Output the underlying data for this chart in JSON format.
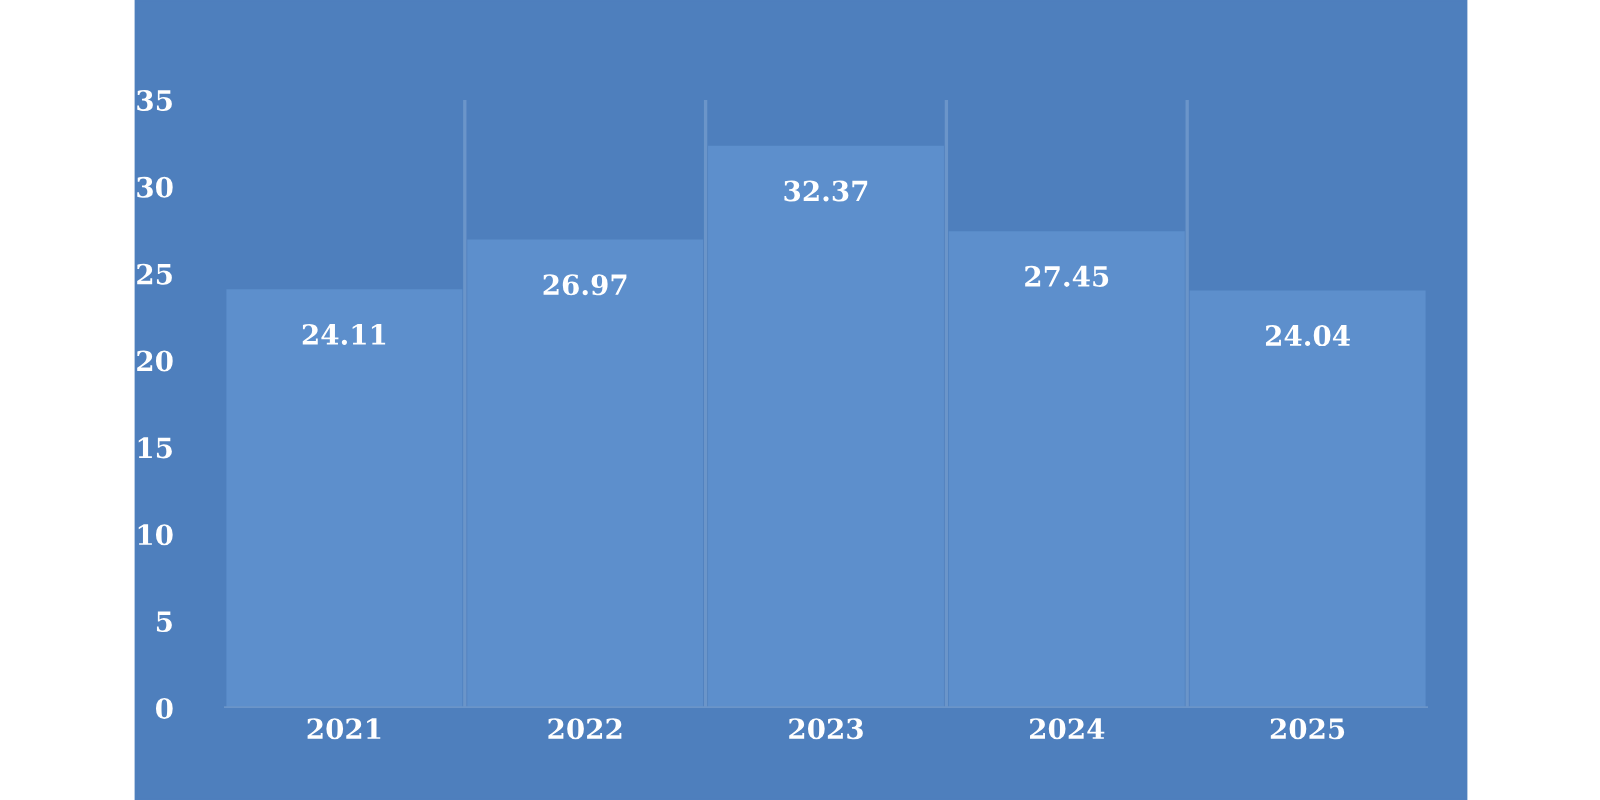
{
  "chart_data": {
    "type": "bar",
    "categories": [
      "2021",
      "2022",
      "2023",
      "2024",
      "2025"
    ],
    "values": [
      24.11,
      26.97,
      32.37,
      27.45,
      24.04
    ],
    "color": "#5d8fcc",
    "ylim": [
      0,
      35
    ],
    "yticks": [
      0,
      5,
      10,
      15,
      20,
      25,
      30,
      35
    ],
    "grid": "x",
    "data_labels": true
  }
}
